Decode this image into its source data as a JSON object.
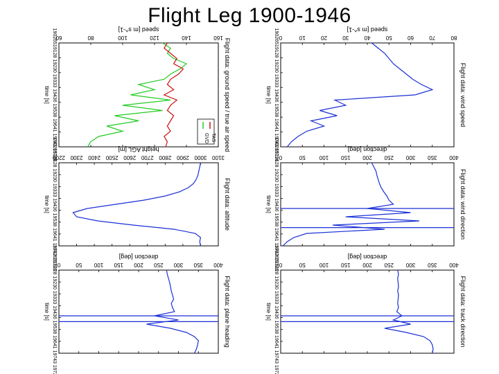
{
  "title": "Flight Leg 1900-1946",
  "colors": {
    "blue": "#1a2fd6",
    "green": "#22cc22",
    "red": "#cc1111",
    "black": "#000000"
  },
  "chart_data": [
    {
      "id": "wind-speed",
      "type": "line",
      "title": "Flight data: wind speed",
      "ylabel": "speed [m s^-1]",
      "xlabel": "time [s]",
      "x_ticks": [
        "1.9025",
        "1.9128",
        "1.9230",
        "1.9333",
        "1.9436",
        "1.9538",
        "1.9641",
        "1.9743"
      ],
      "x_ticklabel_text": "19026519128 19230 19333 19436 19538 19641 19743 19726",
      "ylim": [
        0,
        80
      ],
      "y_ticks": [
        0,
        10,
        20,
        30,
        40,
        50,
        60,
        70,
        80
      ],
      "series": [
        {
          "name": "wind speed",
          "color": "#1a2fd6",
          "x": [
            0,
            0.05,
            0.1,
            0.15,
            0.2,
            0.25,
            0.3,
            0.35,
            0.4,
            0.45,
            0.5,
            0.55,
            0.6,
            0.65,
            0.7,
            0.75,
            0.8,
            0.85,
            0.9,
            0.95,
            1.0
          ],
          "y": [
            42,
            45,
            48,
            50,
            52,
            55,
            58,
            61,
            65,
            70,
            62,
            25,
            30,
            18,
            26,
            14,
            20,
            12,
            8,
            5,
            3
          ]
        }
      ]
    },
    {
      "id": "wind-direction",
      "type": "line",
      "title": "Flight data: wind direction",
      "ylabel": "direction [deg]",
      "xlabel": "time [s]",
      "x_ticks": [
        "1.9025",
        "1.9128",
        "1.9230",
        "1.9333",
        "1.9436",
        "1.9538",
        "1.9641",
        "1.9743"
      ],
      "x_ticklabel_text": "19026519128 19230 19333 19436 19538 19641 19743 19726",
      "ylim": [
        0,
        400
      ],
      "y_ticks": [
        0,
        50,
        100,
        150,
        200,
        250,
        300,
        350,
        400
      ],
      "series": [
        {
          "name": "wind direction",
          "color": "#1a2fd6",
          "x": [
            0,
            0.05,
            0.1,
            0.15,
            0.2,
            0.25,
            0.3,
            0.35,
            0.4,
            0.45,
            0.5,
            0.55,
            0.6,
            0.65,
            0.7,
            0.75,
            0.8,
            0.85,
            0.9,
            0.95,
            1.0
          ],
          "y": [
            210,
            215,
            220,
            222,
            225,
            228,
            232,
            238,
            245,
            250,
            260,
            200,
            300,
            150,
            320,
            120,
            240,
            60,
            30,
            15,
            5
          ]
        }
      ],
      "vlines": [
        0.55,
        0.78
      ]
    },
    {
      "id": "speed-comparison",
      "type": "line",
      "title": "Flight data: ground speed / true air speed",
      "ylabel": "speed [m s^-1]",
      "xlabel": "time [s]",
      "x_ticks": [
        "1.9025",
        "1.9128",
        "1.9230",
        "1.9333",
        "1.9436",
        "1.9538",
        "1.9641",
        "1.9743"
      ],
      "x_ticklabel_text": "19026519128 19230 19333 19436 19538 19641 19743 19726",
      "ylim": [
        60,
        160
      ],
      "y_ticks": [
        60,
        80,
        100,
        120,
        140,
        160
      ],
      "legend": [
        "GVD",
        "TAS"
      ],
      "series": [
        {
          "name": "GVD",
          "color": "#22cc22",
          "x": [
            0,
            0.05,
            0.1,
            0.15,
            0.2,
            0.25,
            0.3,
            0.35,
            0.4,
            0.45,
            0.5,
            0.55,
            0.6,
            0.65,
            0.7,
            0.75,
            0.8,
            0.85,
            0.9,
            0.95,
            1.0
          ],
          "y": [
            125,
            130,
            128,
            132,
            140,
            136,
            130,
            126,
            110,
            120,
            105,
            130,
            100,
            125,
            95,
            110,
            90,
            100,
            85,
            80,
            78
          ]
        },
        {
          "name": "TAS",
          "color": "#cc1111",
          "x": [
            0,
            0.05,
            0.1,
            0.15,
            0.2,
            0.25,
            0.3,
            0.35,
            0.4,
            0.45,
            0.5,
            0.55,
            0.6,
            0.65,
            0.7,
            0.75,
            0.8,
            0.85,
            0.9,
            0.95,
            1.0
          ],
          "y": [
            128,
            126,
            130,
            134,
            132,
            138,
            135,
            130,
            128,
            132,
            126,
            134,
            130,
            128,
            132,
            130,
            128,
            130,
            126,
            128,
            127
          ]
        }
      ]
    },
    {
      "id": "altitude",
      "type": "line",
      "title": "Flight data: altitude",
      "ylabel": "height AGL [m]",
      "xlabel": "time [s]",
      "x_ticks": [
        "1.9025",
        "1.9128",
        "1.9230",
        "1.9333",
        "1.9436",
        "1.9538",
        "1.9641",
        "1.9743"
      ],
      "x_ticklabel_text": "19026519128 19230 19333 19436 19538 19641 19743 19726",
      "ylim": [
        2200,
        3100
      ],
      "y_ticks": [
        2200,
        2300,
        2400,
        2500,
        2600,
        2700,
        2800,
        2900,
        3000,
        3100
      ],
      "series": [
        {
          "name": "altitude",
          "color": "#1a2fd6",
          "x": [
            0,
            0.05,
            0.1,
            0.15,
            0.2,
            0.25,
            0.3,
            0.35,
            0.4,
            0.45,
            0.5,
            0.55,
            0.6,
            0.65,
            0.7,
            0.75,
            0.8,
            0.85,
            0.9,
            0.95,
            1.0
          ],
          "y": [
            3000,
            2995,
            2990,
            2985,
            2975,
            2960,
            2930,
            2880,
            2800,
            2680,
            2520,
            2360,
            2280,
            2300,
            2420,
            2620,
            2850,
            2970,
            3000,
            2995,
            3000
          ]
        }
      ]
    },
    {
      "id": "track-direction",
      "type": "line",
      "title": "Flight data: track direction",
      "ylabel": "direction [deg]",
      "xlabel": "time [s]",
      "x_ticks": [
        "1.9025",
        "1.9128",
        "1.9230",
        "1.9333",
        "1.9436",
        "1.9538",
        "1.9641",
        "1.9743"
      ],
      "x_ticklabel_text": "19026519128 19230 19333 19436 19538 19641 19743 19726",
      "ylim": [
        0,
        400
      ],
      "y_ticks": [
        0,
        50,
        100,
        150,
        200,
        250,
        300,
        350,
        400
      ],
      "series": [
        {
          "name": "track direction",
          "color": "#1a2fd6",
          "x": [
            0,
            0.05,
            0.1,
            0.15,
            0.2,
            0.25,
            0.3,
            0.35,
            0.4,
            0.45,
            0.5,
            0.55,
            0.6,
            0.65,
            0.7,
            0.75,
            0.8,
            0.85,
            0.9,
            0.95,
            1.0
          ],
          "y": [
            270,
            272,
            270,
            271,
            272,
            270,
            272,
            271,
            270,
            272,
            268,
            280,
            260,
            300,
            240,
            290,
            330,
            345,
            350,
            352,
            350
          ]
        }
      ],
      "vlines": [
        0.55,
        0.62
      ]
    },
    {
      "id": "plane-heading",
      "type": "line",
      "title": "Flight data: plane heading",
      "ylabel": "direction [deg]",
      "xlabel": "time [s]",
      "x_ticks": [
        "1.9025",
        "1.9128",
        "1.9230",
        "1.9333",
        "1.9436",
        "1.9538",
        "1.9641",
        "1.9743"
      ],
      "x_ticklabel_text": "19026519128 19230 19333 19436 19538 19641 19743 19726",
      "ylim": [
        0,
        400
      ],
      "y_ticks": [
        0,
        50,
        100,
        150,
        200,
        250,
        300,
        350,
        400
      ],
      "series": [
        {
          "name": "plane heading",
          "color": "#1a2fd6",
          "x": [
            0,
            0.05,
            0.1,
            0.15,
            0.2,
            0.25,
            0.3,
            0.35,
            0.4,
            0.45,
            0.5,
            0.55,
            0.6,
            0.65,
            0.7,
            0.75,
            0.8,
            0.85,
            0.9,
            0.95,
            1.0
          ],
          "y": [
            270,
            272,
            275,
            278,
            280,
            282,
            285,
            288,
            282,
            285,
            290,
            240,
            300,
            220,
            280,
            320,
            340,
            350,
            348,
            345,
            340
          ]
        }
      ],
      "vlines": [
        0.55,
        0.62
      ]
    }
  ]
}
